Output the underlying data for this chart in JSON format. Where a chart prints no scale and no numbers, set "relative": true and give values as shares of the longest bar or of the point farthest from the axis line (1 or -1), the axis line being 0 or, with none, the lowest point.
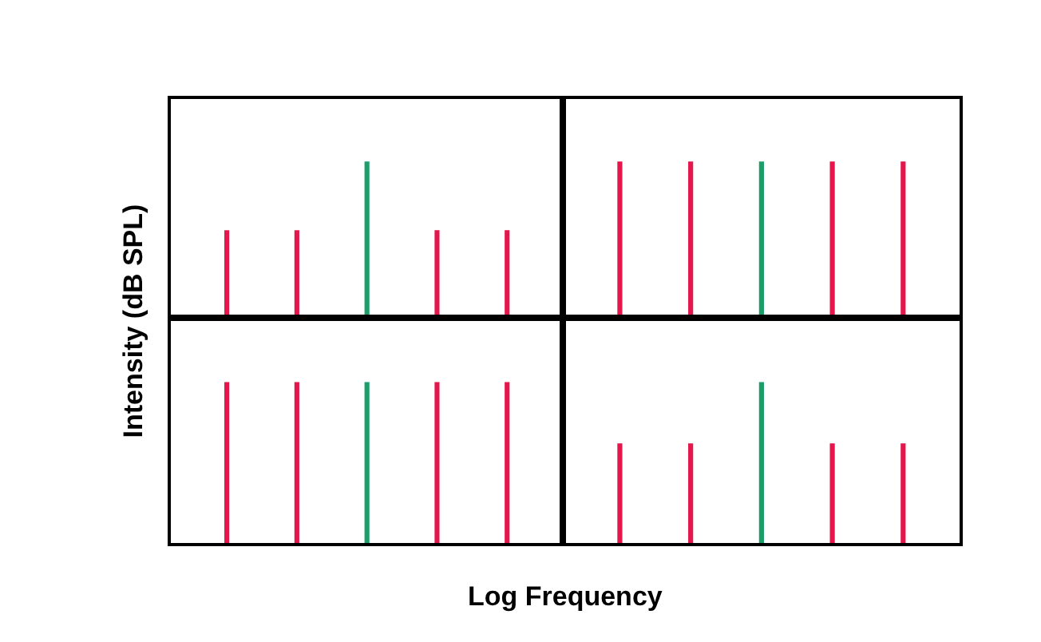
{
  "chart_data": [
    {
      "type": "bar",
      "relative": true,
      "ylabel": "Intensity (dB SPL)",
      "categories": [
        null,
        null,
        null,
        null,
        null
      ],
      "values": [
        0.56,
        0.56,
        1,
        0.56,
        0.56
      ],
      "colors": [
        "#e3174b",
        "#e3174b",
        "#1c9e6b",
        "#e3174b",
        "#e3174b"
      ]
    },
    {
      "type": "bar",
      "relative": true,
      "categories": [
        null,
        null,
        null,
        null,
        null
      ],
      "values": [
        1,
        1,
        1,
        1,
        1
      ],
      "colors": [
        "#e3174b",
        "#e3174b",
        "#1c9e6b",
        "#e3174b",
        "#e3174b"
      ]
    },
    {
      "type": "bar",
      "relative": true,
      "categories": [
        null,
        null,
        null,
        null,
        null
      ],
      "values": [
        1,
        1,
        1,
        1,
        1
      ],
      "colors": [
        "#e3174b",
        "#e3174b",
        "#1c9e6b",
        "#e3174b",
        "#e3174b"
      ]
    },
    {
      "type": "bar",
      "relative": true,
      "xlabel": "Log Frequency",
      "categories": [
        null,
        null,
        null,
        null,
        null
      ],
      "values": [
        0.62,
        0.62,
        1,
        0.62,
        0.62
      ],
      "colors": [
        "#e3174b",
        "#e3174b",
        "#1c9e6b",
        "#e3174b",
        "#e3174b"
      ]
    }
  ]
}
